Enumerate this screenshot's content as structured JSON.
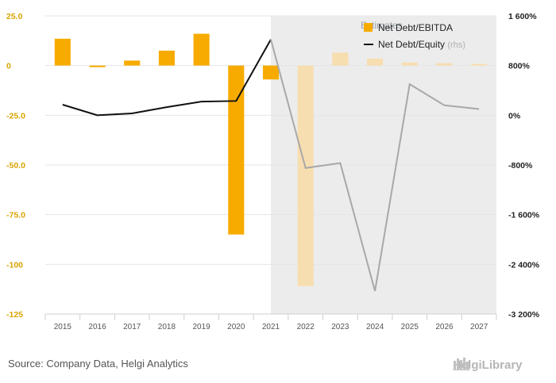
{
  "chart_data": {
    "type": "bar",
    "categories": [
      "2015",
      "2016",
      "2017",
      "2018",
      "2019",
      "2020",
      "2021",
      "2022",
      "2023",
      "2024",
      "2025",
      "2026",
      "2027"
    ],
    "estimates_label": "Estimates",
    "estimates_from_index": 7,
    "series": [
      {
        "name": "Net Debt/EBITDA",
        "type": "bar",
        "axis": "left",
        "color": "#f7ab00",
        "estimate_color": "#f7deb0",
        "values": [
          13.5,
          -0.8,
          2.5,
          7.5,
          16.0,
          -85.0,
          -7.0,
          -111.0,
          6.5,
          3.5,
          1.5,
          1.2,
          0.8
        ]
      },
      {
        "name": "Net Debt/Equity",
        "name_suffix": "(rhs)",
        "type": "line",
        "axis": "right",
        "color": "#111111",
        "estimate_color": "#a8a8a8",
        "values": [
          170,
          0,
          30,
          130,
          220,
          230,
          1220,
          -850,
          -770,
          -2830,
          500,
          160,
          100
        ]
      }
    ],
    "y_left": {
      "min": -125,
      "max": 25,
      "ticks": [
        25,
        0,
        -25,
        -50,
        -75,
        -100,
        -125
      ],
      "tick_labels": [
        "25.0",
        "0",
        "-25.0",
        "-50.0",
        "-75.0",
        "-100",
        "-125"
      ]
    },
    "y_right": {
      "min": -3200,
      "max": 1600,
      "ticks": [
        1600,
        800,
        0,
        -800,
        -1600,
        -2400,
        -3200
      ],
      "tick_labels": [
        "1 600%",
        "800%",
        "0%",
        "-800%",
        "-1 600%",
        "-2 400%",
        "-3 200%"
      ]
    },
    "grid": true,
    "legend_position": "top-right"
  },
  "footer": {
    "source": "Source: Company Data, Helgi Analytics",
    "logo_text": "HelgiLibrary"
  },
  "colors": {
    "estimate_band": "#ececec",
    "grid": "#e6e6e6",
    "left_axis_text": "#d9a400"
  }
}
